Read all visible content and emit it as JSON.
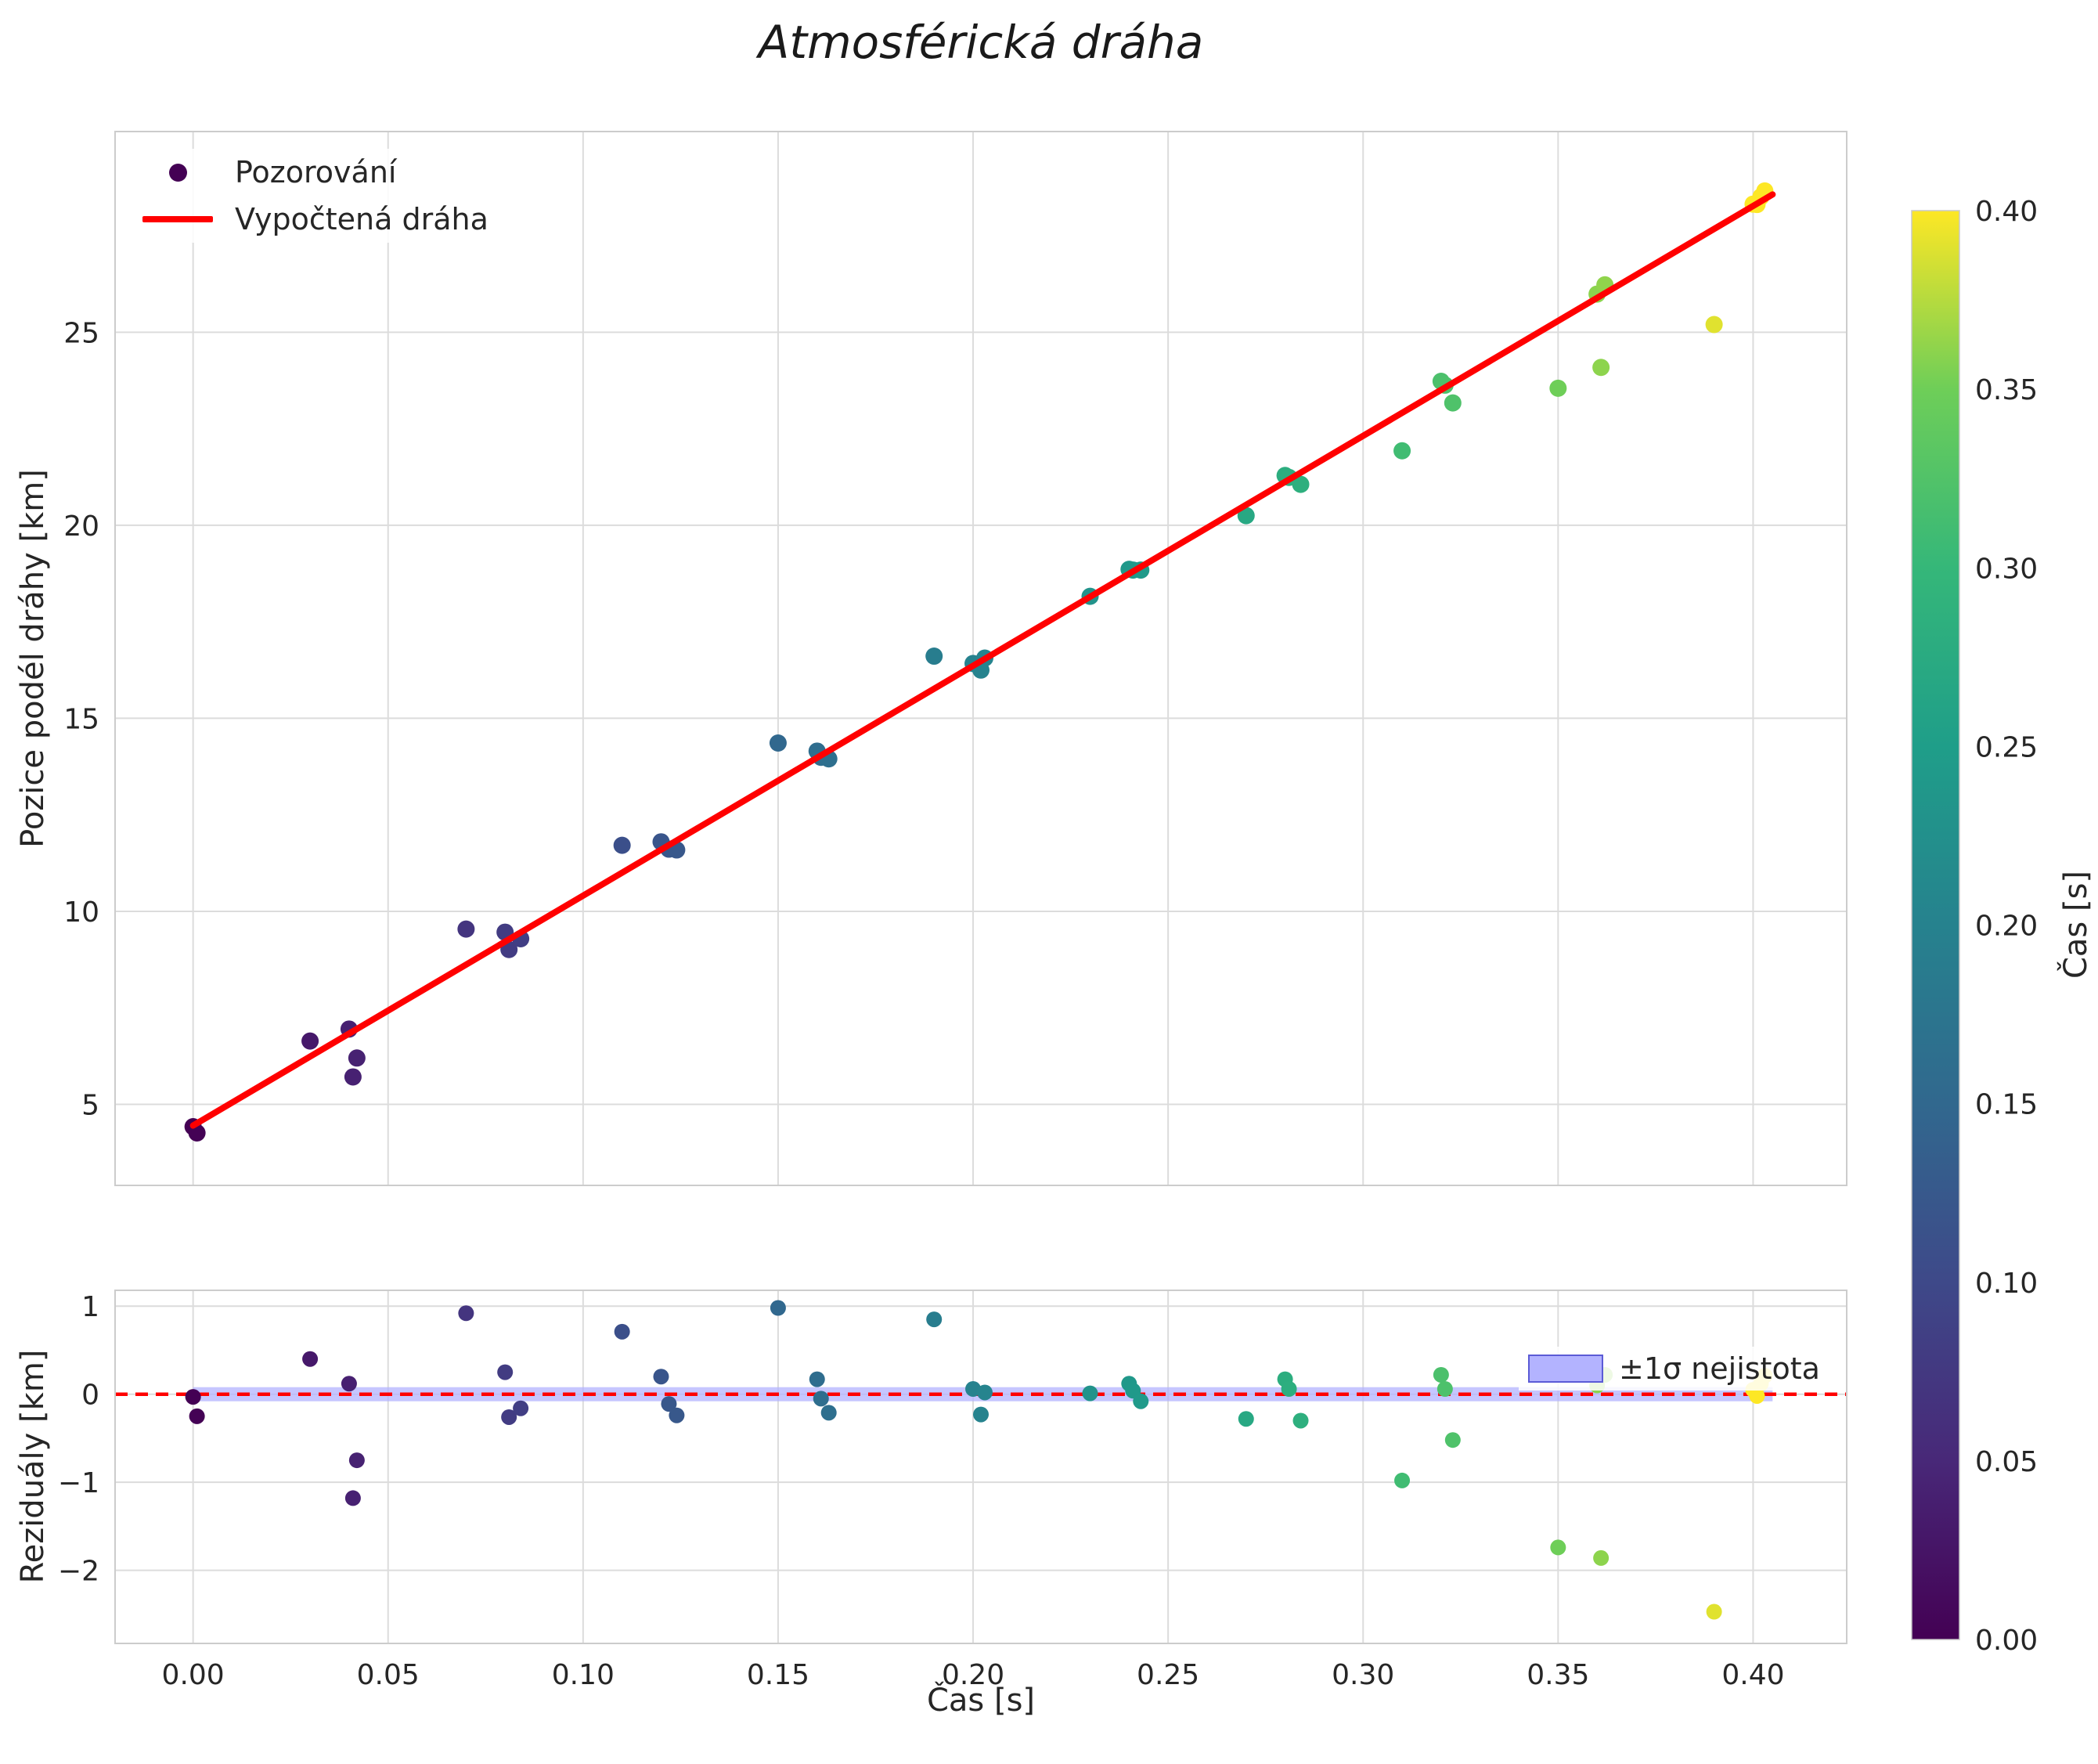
{
  "chart_data": {
    "type": "scatter",
    "title": "Atmosférická dráha",
    "xlabel": "Čas [s]",
    "panels": [
      {
        "name": "trajectory",
        "ylabel": "Pozice podél dráhy [km]",
        "xlim": [
          -0.02,
          0.424
        ],
        "ylim": [
          2.9,
          30.2
        ],
        "yticks": [
          5,
          10,
          15,
          20,
          25
        ],
        "ytick_labels": [
          "5",
          "10",
          "15",
          "20",
          "25"
        ],
        "grid": true
      },
      {
        "name": "residuals",
        "ylabel": "Reziduály [km]",
        "xlim": [
          -0.02,
          0.424
        ],
        "ylim": [
          -2.83,
          1.18
        ],
        "yticks": [
          -2,
          -1,
          0,
          1
        ],
        "ytick_labels": [
          "−2",
          "−1",
          "0",
          "1"
        ],
        "grid": true
      }
    ],
    "xticks": [
      0,
      0.05,
      0.1,
      0.15,
      0.2,
      0.25,
      0.3,
      0.35,
      0.4
    ],
    "xtick_labels": [
      "0.00",
      "0.05",
      "0.10",
      "0.15",
      "0.20",
      "0.25",
      "0.30",
      "0.35",
      "0.40"
    ],
    "legend": {
      "observations_label": "Pozorování",
      "fit_label": "Vypočtená dráha",
      "band_label": "±1σ nejistota"
    },
    "fit_line": {
      "x": [
        0.0,
        0.405
      ],
      "y": [
        4.45,
        28.57
      ]
    },
    "zero_line_y": 0.0,
    "uncertainty_band": {
      "x0": 0.0,
      "x1": 0.405,
      "center": 0.0,
      "half_width": 0.08
    },
    "observations_columns": [
      "t_s",
      "position_km",
      "residual_km"
    ],
    "observations": [
      [
        0.0,
        4.42,
        -0.03
      ],
      [
        0.001,
        4.26,
        -0.25
      ],
      [
        0.03,
        6.64,
        0.4
      ],
      [
        0.04,
        6.95,
        0.12
      ],
      [
        0.042,
        6.2,
        -0.75
      ],
      [
        0.041,
        5.71,
        -1.18
      ],
      [
        0.07,
        9.54,
        0.92
      ],
      [
        0.08,
        9.46,
        0.25
      ],
      [
        0.081,
        9.01,
        -0.26
      ],
      [
        0.084,
        9.29,
        -0.16
      ],
      [
        0.11,
        11.71,
        0.71
      ],
      [
        0.12,
        11.8,
        0.2
      ],
      [
        0.122,
        11.61,
        -0.11
      ],
      [
        0.124,
        11.59,
        -0.24
      ],
      [
        0.15,
        14.36,
        0.98
      ],
      [
        0.16,
        14.15,
        0.17
      ],
      [
        0.161,
        13.99,
        -0.05
      ],
      [
        0.163,
        13.95,
        -0.21
      ],
      [
        0.19,
        16.61,
        0.85
      ],
      [
        0.2,
        16.42,
        0.06
      ],
      [
        0.202,
        16.25,
        -0.23
      ],
      [
        0.203,
        16.56,
        0.02
      ],
      [
        0.23,
        18.16,
        0.01
      ],
      [
        0.24,
        18.86,
        0.12
      ],
      [
        0.241,
        18.84,
        0.04
      ],
      [
        0.243,
        18.84,
        -0.08
      ],
      [
        0.27,
        20.25,
        -0.28
      ],
      [
        0.28,
        21.29,
        0.17
      ],
      [
        0.281,
        21.24,
        0.06
      ],
      [
        0.284,
        21.06,
        -0.3
      ],
      [
        0.31,
        21.93,
        -0.98
      ],
      [
        0.32,
        23.73,
        0.22
      ],
      [
        0.321,
        23.63,
        0.06
      ],
      [
        0.323,
        23.17,
        -0.52
      ],
      [
        0.35,
        23.55,
        -1.74
      ],
      [
        0.36,
        25.99,
        0.1
      ],
      [
        0.362,
        26.23,
        0.22
      ],
      [
        0.361,
        24.09,
        -1.86
      ],
      [
        0.39,
        25.2,
        -2.47
      ],
      [
        0.4,
        28.32,
        0.05
      ],
      [
        0.401,
        28.31,
        -0.02
      ],
      [
        0.402,
        28.51,
        0.12
      ],
      [
        0.403,
        28.66,
        0.21
      ]
    ],
    "colorbar": {
      "label": "Čas [s]",
      "min": 0.0,
      "max": 0.4,
      "ticks": [
        0,
        0.05,
        0.1,
        0.15,
        0.2,
        0.25,
        0.3,
        0.35,
        0.4
      ],
      "tick_labels": [
        "0.00",
        "0.05",
        "0.10",
        "0.15",
        "0.20",
        "0.25",
        "0.30",
        "0.35",
        "0.40"
      ],
      "colormap": "viridis"
    }
  },
  "colors": {
    "fit_line": "#ff0000",
    "zero_line": "#ff0000",
    "band_fill": "#b3b3ff",
    "band_edge": "#5b5bd6",
    "grid": "#dcdcdc",
    "spine": "#cccccc",
    "text": "#262626",
    "legend_marker": "#440154",
    "viridis_stops": [
      [
        0.0,
        "#440154"
      ],
      [
        0.125,
        "#482878"
      ],
      [
        0.25,
        "#3e4989"
      ],
      [
        0.375,
        "#31688e"
      ],
      [
        0.5,
        "#26828e"
      ],
      [
        0.625,
        "#1f9e89"
      ],
      [
        0.75,
        "#35b779"
      ],
      [
        0.875,
        "#6ece58"
      ],
      [
        1.0,
        "#fde725"
      ]
    ]
  }
}
